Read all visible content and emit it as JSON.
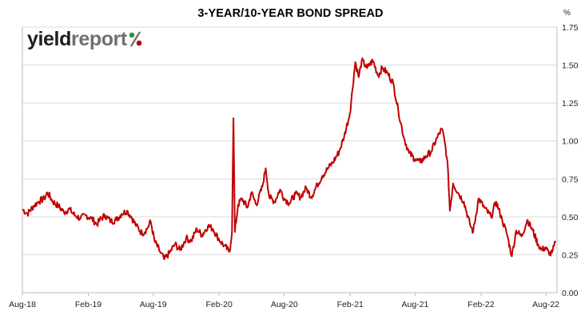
{
  "chart_data": {
    "type": "line",
    "title": "3-YEAR/10-YEAR BOND SPREAD",
    "unit": "%",
    "xlabel": "",
    "ylabel": "",
    "x_ticks": [
      "Aug-18",
      "Feb-19",
      "Aug-19",
      "Feb-20",
      "Aug-20",
      "Feb-21",
      "Aug-21",
      "Feb-22",
      "Aug-22"
    ],
    "y_ticks": [
      "0.00",
      "0.25",
      "0.50",
      "0.75",
      "1.00",
      "1.25",
      "1.50",
      "1.75"
    ],
    "ylim": [
      0,
      1.75
    ],
    "grid": "horizontal",
    "series": [
      {
        "color": "#c00000",
        "points": [
          [
            "2018-08-01",
            0.55
          ],
          [
            "2018-08-15",
            0.52
          ],
          [
            "2018-09-01",
            0.57
          ],
          [
            "2018-09-15",
            0.6
          ],
          [
            "2018-10-01",
            0.62
          ],
          [
            "2018-10-10",
            0.66
          ],
          [
            "2018-10-25",
            0.6
          ],
          [
            "2018-11-10",
            0.57
          ],
          [
            "2018-11-25",
            0.53
          ],
          [
            "2018-12-10",
            0.55
          ],
          [
            "2018-12-25",
            0.51
          ],
          [
            "2019-01-10",
            0.49
          ],
          [
            "2019-01-25",
            0.51
          ],
          [
            "2019-02-10",
            0.49
          ],
          [
            "2019-02-25",
            0.45
          ],
          [
            "2019-03-05",
            0.48
          ],
          [
            "2019-03-20",
            0.51
          ],
          [
            "2019-04-05",
            0.47
          ],
          [
            "2019-04-20",
            0.48
          ],
          [
            "2019-05-05",
            0.52
          ],
          [
            "2019-05-20",
            0.54
          ],
          [
            "2019-06-01",
            0.5
          ],
          [
            "2019-06-15",
            0.44
          ],
          [
            "2019-07-01",
            0.39
          ],
          [
            "2019-07-15",
            0.42
          ],
          [
            "2019-07-25",
            0.47
          ],
          [
            "2019-08-05",
            0.34
          ],
          [
            "2019-08-20",
            0.27
          ],
          [
            "2019-09-01",
            0.22
          ],
          [
            "2019-09-15",
            0.26
          ],
          [
            "2019-10-01",
            0.32
          ],
          [
            "2019-10-15",
            0.28
          ],
          [
            "2019-11-01",
            0.36
          ],
          [
            "2019-11-15",
            0.34
          ],
          [
            "2019-12-01",
            0.42
          ],
          [
            "2019-12-15",
            0.38
          ],
          [
            "2020-01-01",
            0.44
          ],
          [
            "2020-01-15",
            0.42
          ],
          [
            "2020-02-01",
            0.35
          ],
          [
            "2020-02-15",
            0.31
          ],
          [
            "2020-03-01",
            0.27
          ],
          [
            "2020-03-08",
            0.4
          ],
          [
            "2020-03-12",
            1.15
          ],
          [
            "2020-03-16",
            0.4
          ],
          [
            "2020-03-25",
            0.58
          ],
          [
            "2020-04-05",
            0.62
          ],
          [
            "2020-04-20",
            0.56
          ],
          [
            "2020-05-01",
            0.66
          ],
          [
            "2020-05-15",
            0.58
          ],
          [
            "2020-06-01",
            0.7
          ],
          [
            "2020-06-10",
            0.82
          ],
          [
            "2020-06-20",
            0.63
          ],
          [
            "2020-07-05",
            0.6
          ],
          [
            "2020-07-20",
            0.68
          ],
          [
            "2020-08-01",
            0.62
          ],
          [
            "2020-08-15",
            0.59
          ],
          [
            "2020-09-01",
            0.65
          ],
          [
            "2020-09-15",
            0.63
          ],
          [
            "2020-10-01",
            0.69
          ],
          [
            "2020-10-15",
            0.63
          ],
          [
            "2020-11-01",
            0.71
          ],
          [
            "2020-11-15",
            0.77
          ],
          [
            "2020-12-01",
            0.82
          ],
          [
            "2020-12-15",
            0.86
          ],
          [
            "2021-01-01",
            0.93
          ],
          [
            "2021-01-15",
            1.03
          ],
          [
            "2021-01-31",
            1.18
          ],
          [
            "2021-02-15",
            1.52
          ],
          [
            "2021-02-25",
            1.42
          ],
          [
            "2021-03-05",
            1.53
          ],
          [
            "2021-03-20",
            1.48
          ],
          [
            "2021-04-05",
            1.53
          ],
          [
            "2021-04-20",
            1.43
          ],
          [
            "2021-05-01",
            1.48
          ],
          [
            "2021-05-15",
            1.45
          ],
          [
            "2021-06-01",
            1.38
          ],
          [
            "2021-06-15",
            1.2
          ],
          [
            "2021-07-01",
            1.02
          ],
          [
            "2021-07-15",
            0.92
          ],
          [
            "2021-08-01",
            0.88
          ],
          [
            "2021-08-15",
            0.86
          ],
          [
            "2021-09-01",
            0.9
          ],
          [
            "2021-09-15",
            0.93
          ],
          [
            "2021-10-01",
            1.02
          ],
          [
            "2021-10-15",
            1.08
          ],
          [
            "2021-10-25",
            0.96
          ],
          [
            "2021-11-01",
            0.8
          ],
          [
            "2021-11-06",
            0.54
          ],
          [
            "2021-11-15",
            0.72
          ],
          [
            "2021-12-01",
            0.65
          ],
          [
            "2021-12-15",
            0.6
          ],
          [
            "2022-01-01",
            0.45
          ],
          [
            "2022-01-10",
            0.4
          ],
          [
            "2022-01-25",
            0.62
          ],
          [
            "2022-02-10",
            0.56
          ],
          [
            "2022-03-01",
            0.5
          ],
          [
            "2022-03-15",
            0.6
          ],
          [
            "2022-04-01",
            0.48
          ],
          [
            "2022-04-15",
            0.38
          ],
          [
            "2022-04-28",
            0.24
          ],
          [
            "2022-05-10",
            0.41
          ],
          [
            "2022-05-25",
            0.37
          ],
          [
            "2022-06-10",
            0.48
          ],
          [
            "2022-06-25",
            0.41
          ],
          [
            "2022-07-10",
            0.32
          ],
          [
            "2022-07-20",
            0.28
          ],
          [
            "2022-08-01",
            0.3
          ],
          [
            "2022-08-10",
            0.25
          ],
          [
            "2022-08-20",
            0.28
          ],
          [
            "2022-08-28",
            0.33
          ]
        ]
      }
    ]
  },
  "logo": {
    "part1": "yield",
    "part2": "report",
    "colors": {
      "dark": "#1f1f1f",
      "grey": "#6f6f6f",
      "green": "#3e8e41",
      "red": "#c00000"
    }
  }
}
